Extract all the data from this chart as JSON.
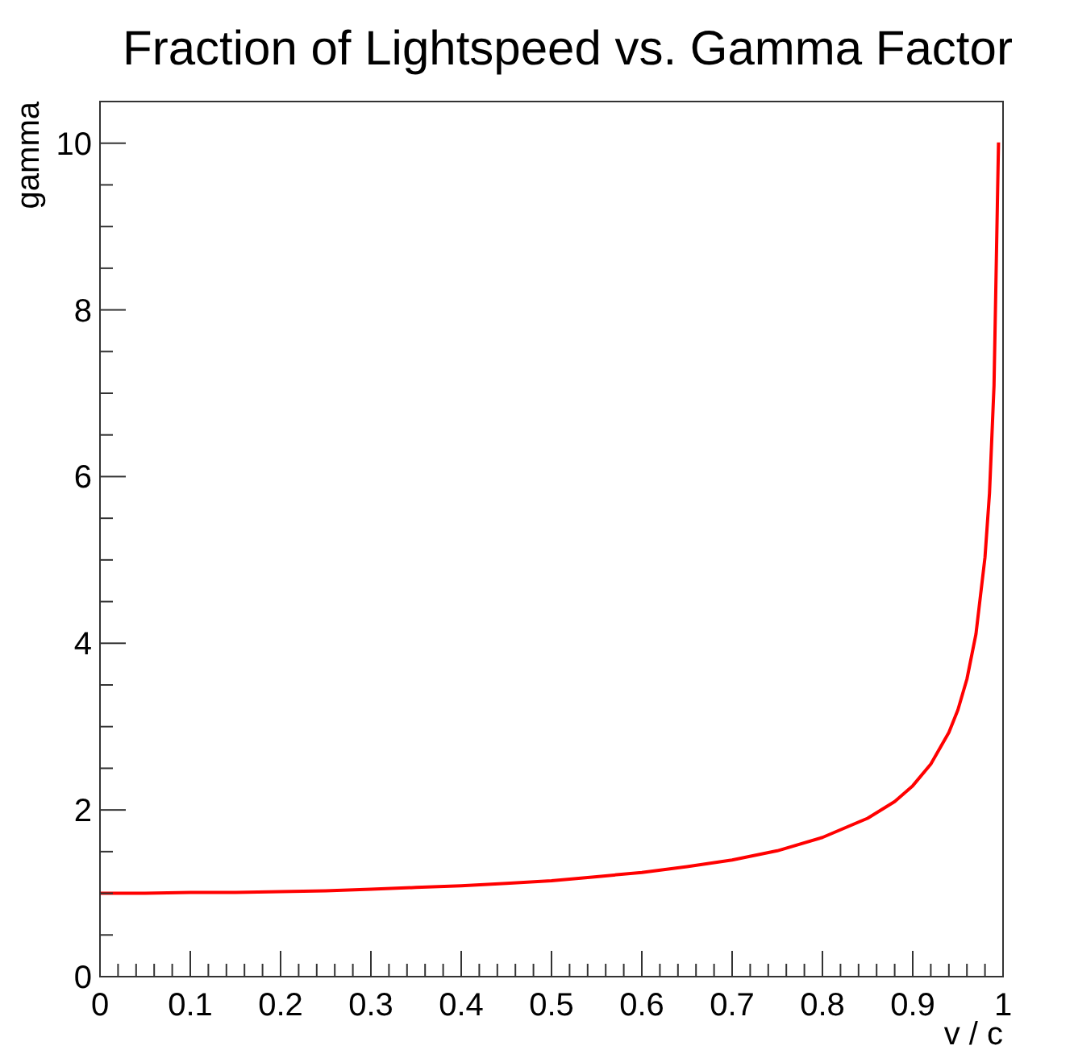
{
  "chart_data": {
    "type": "line",
    "title": "Fraction of Lightspeed vs. Gamma Factor",
    "xlabel": "v / c",
    "ylabel": "gamma",
    "x": [
      0,
      0.05,
      0.1,
      0.15,
      0.2,
      0.25,
      0.3,
      0.35,
      0.4,
      0.45,
      0.5,
      0.55,
      0.6,
      0.65,
      0.7,
      0.75,
      0.8,
      0.85,
      0.88,
      0.9,
      0.92,
      0.94,
      0.95,
      0.96,
      0.97,
      0.98,
      0.985,
      0.99,
      0.995
    ],
    "series": [
      {
        "color": "#ff0000",
        "values": [
          1,
          1,
          1.01,
          1.01,
          1.02,
          1.03,
          1.05,
          1.07,
          1.09,
          1.12,
          1.15,
          1.2,
          1.25,
          1.32,
          1.4,
          1.51,
          1.67,
          1.9,
          2.1,
          2.29,
          2.55,
          2.93,
          3.2,
          3.57,
          4.11,
          5.03,
          5.8,
          7.09,
          10.01
        ]
      }
    ],
    "xlim": [
      0,
      1
    ],
    "ylim": [
      0,
      10.5
    ],
    "xticks": [
      0,
      {
        "value": 0.02,
        "label": null
      },
      {
        "value": 0.04,
        "label": null
      },
      {
        "value": 0.06,
        "label": null
      },
      {
        "value": 0.08,
        "label": null
      },
      0.1,
      {
        "value": 0.12,
        "label": null
      },
      {
        "value": 0.14,
        "label": null
      },
      {
        "value": 0.16,
        "label": null
      },
      {
        "value": 0.18,
        "label": null
      },
      0.2,
      {
        "value": 0.22,
        "label": null
      },
      {
        "value": 0.24,
        "label": null
      },
      {
        "value": 0.26,
        "label": null
      },
      {
        "value": 0.28,
        "label": null
      },
      0.3,
      {
        "value": 0.32,
        "label": null
      },
      {
        "value": 0.34,
        "label": null
      },
      {
        "value": 0.36,
        "label": null
      },
      {
        "value": 0.38,
        "label": null
      },
      0.4,
      {
        "value": 0.42,
        "label": null
      },
      {
        "value": 0.44,
        "label": null
      },
      {
        "value": 0.46,
        "label": null
      },
      {
        "value": 0.48,
        "label": null
      },
      0.5,
      {
        "value": 0.52,
        "label": null
      },
      {
        "value": 0.54,
        "label": null
      },
      {
        "value": 0.56,
        "label": null
      },
      {
        "value": 0.58,
        "label": null
      },
      0.6,
      {
        "value": 0.62,
        "label": null
      },
      {
        "value": 0.64,
        "label": null
      },
      {
        "value": 0.66,
        "label": null
      },
      {
        "value": 0.68,
        "label": null
      },
      0.7,
      {
        "value": 0.72,
        "label": null
      },
      {
        "value": 0.74,
        "label": null
      },
      {
        "value": 0.76,
        "label": null
      },
      {
        "value": 0.78,
        "label": null
      },
      0.8,
      {
        "value": 0.82,
        "label": null
      },
      {
        "value": 0.84,
        "label": null
      },
      {
        "value": 0.86,
        "label": null
      },
      {
        "value": 0.88,
        "label": null
      },
      0.9,
      {
        "value": 0.92,
        "label": null
      },
      {
        "value": 0.94,
        "label": null
      },
      {
        "value": 0.96,
        "label": null
      },
      {
        "value": 0.98,
        "label": null
      },
      1
    ],
    "yticks": [
      0,
      {
        "value": 0.5,
        "label": null
      },
      {
        "value": 1,
        "label": null
      },
      {
        "value": 1.5,
        "label": null
      },
      2,
      {
        "value": 2.5,
        "label": null
      },
      {
        "value": 3,
        "label": null
      },
      {
        "value": 3.5,
        "label": null
      },
      4,
      {
        "value": 4.5,
        "label": null
      },
      {
        "value": 5,
        "label": null
      },
      {
        "value": 5.5,
        "label": null
      },
      6,
      {
        "value": 6.5,
        "label": null
      },
      {
        "value": 7,
        "label": null
      },
      {
        "value": 7.5,
        "label": null
      },
      8,
      {
        "value": 8.5,
        "label": null
      },
      {
        "value": 9,
        "label": null
      },
      {
        "value": 9.5,
        "label": null
      },
      10
    ],
    "grid": false,
    "marker": "none",
    "line_style": "solid"
  }
}
